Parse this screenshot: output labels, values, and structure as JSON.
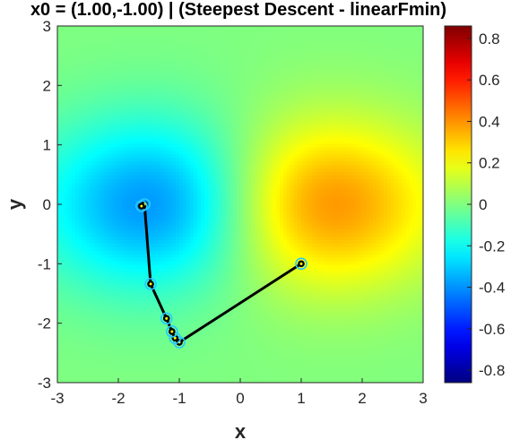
{
  "title": "x0 = (1.00,-1.00) | (Steepest Descent - linearFmin)",
  "chart_data": {
    "type": "heatmap",
    "title": "x0 = (1.00,-1.00) | (Steepest Descent - linearFmin)",
    "xlabel": "x",
    "ylabel": "y",
    "xlim": [
      -3,
      3
    ],
    "ylim": [
      -3,
      3
    ],
    "xticks": [
      "-3",
      "-2",
      "-1",
      "0",
      "1",
      "2",
      "3"
    ],
    "yticks": [
      "3",
      "2",
      "1",
      "0",
      "-1",
      "-2",
      "-3"
    ],
    "colormap": "jet",
    "clim": [
      -0.86,
      0.86
    ],
    "colorbar_ticks": [
      "0.8",
      "0.6",
      "0.4",
      "0.2",
      "0",
      "-0.2",
      "-0.4",
      "-0.6",
      "-0.8"
    ],
    "minimum": {
      "x": -1.6,
      "y": 0
    },
    "maximum": {
      "x": 1.6,
      "y": 0
    },
    "path": {
      "x": [
        1.0,
        -1.0,
        -1.07,
        -1.12,
        -1.21,
        -1.47,
        -1.57,
        -1.62
      ],
      "y": [
        -1.0,
        -2.32,
        -2.25,
        -2.14,
        -1.92,
        -1.34,
        0.0,
        -0.03
      ]
    },
    "colors": {
      "path": "#000000",
      "marker_edge": "#28c8ff",
      "marker_center": "#ffff00"
    }
  }
}
